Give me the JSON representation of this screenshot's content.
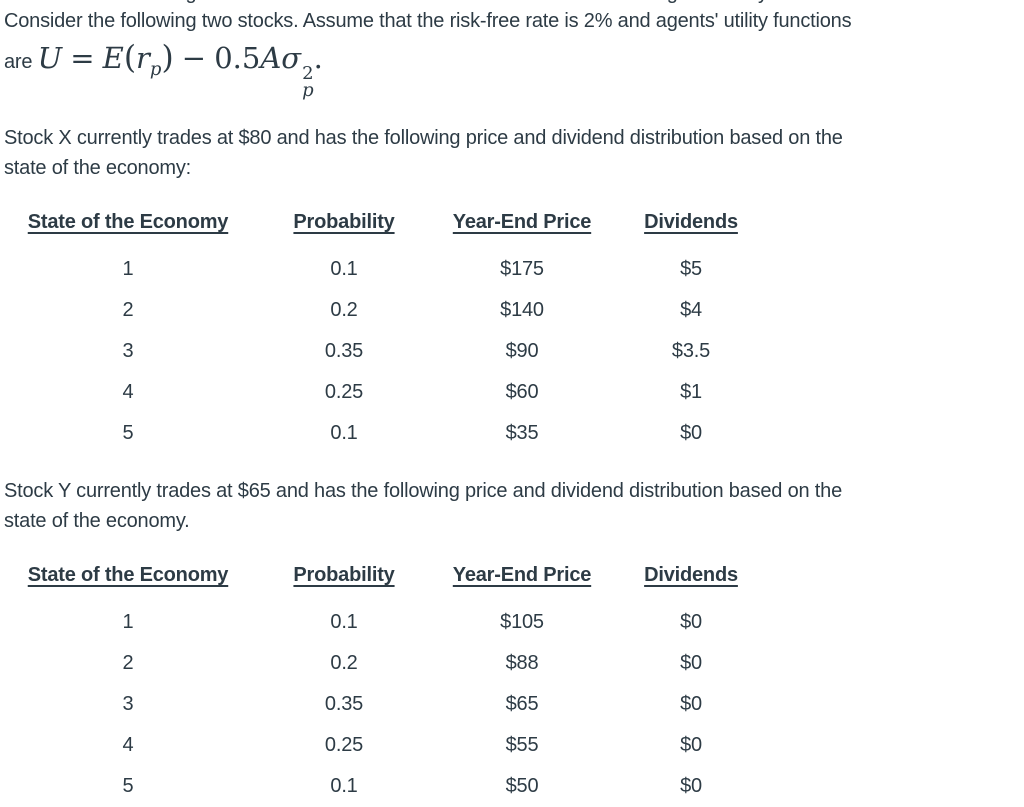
{
  "page": {
    "background": "#ffffff",
    "text_color": "#2d3b45"
  },
  "intro": {
    "line1": "Consider the following two stocks. Assume that the risk-free rate is 2% and agents' utility functions",
    "formula": {
      "lead": "are",
      "u": "U",
      "equals": "=",
      "e": "E",
      "lparen": "(",
      "r": "r",
      "r_sub": "p",
      "rparen": ")",
      "minus": "−",
      "coefficient": "0.5",
      "a": "A",
      "sigma": "σ",
      "sigma_sup": "2",
      "sigma_sub": "p",
      "period": "."
    }
  },
  "stock_x": {
    "line1": "Stock X currently trades at $80 and has the following price and dividend distribution based on the",
    "line2": "state of the economy:",
    "table": {
      "headers": [
        "State of the Economy",
        "Probability",
        "Year-End Price",
        "Dividends"
      ],
      "rows": [
        [
          "1",
          "0.1",
          "$175",
          "$5"
        ],
        [
          "2",
          "0.2",
          "$140",
          "$4"
        ],
        [
          "3",
          "0.35",
          "$90",
          "$3.5"
        ],
        [
          "4",
          "0.25",
          "$60",
          "$1"
        ],
        [
          "5",
          "0.1",
          "$35",
          "$0"
        ]
      ]
    }
  },
  "stock_y": {
    "line1": "Stock Y currently trades at $65 and has the following price and dividend distribution based on the",
    "line2": "state of the economy.",
    "table": {
      "headers": [
        "State of the Economy",
        "Probability",
        "Year-End Price",
        "Dividends"
      ],
      "rows": [
        [
          "1",
          "0.1",
          "$105",
          "$0"
        ],
        [
          "2",
          "0.2",
          "$88",
          "$0"
        ],
        [
          "3",
          "0.35",
          "$65",
          "$0"
        ],
        [
          "4",
          "0.25",
          "$55",
          "$0"
        ],
        [
          "5",
          "0.1",
          "$50",
          "$0"
        ]
      ]
    }
  }
}
